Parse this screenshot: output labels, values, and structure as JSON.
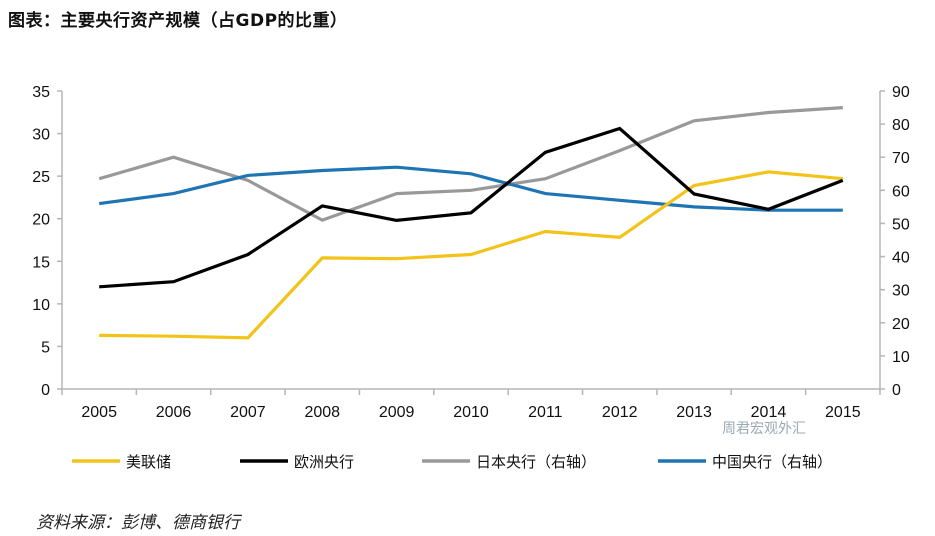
{
  "title": "图表：主要央行资产规模（占GDP的比重）",
  "source": "资料来源：彭博、德商银行",
  "watermark": "周君宏观外汇",
  "chart_data": {
    "type": "line",
    "title": "图表：主要央行资产规模（占GDP的比重）",
    "categories": [
      "2005",
      "2006",
      "2007",
      "2008",
      "2009",
      "2010",
      "2011",
      "2012",
      "2013",
      "2014",
      "2015"
    ],
    "left_axis": {
      "ylim": [
        0,
        35
      ],
      "ticks": [
        0,
        5,
        10,
        15,
        20,
        25,
        30,
        35
      ]
    },
    "right_axis": {
      "ylim": [
        0,
        90
      ],
      "ticks": [
        0,
        10,
        20,
        30,
        40,
        50,
        60,
        70,
        80,
        90
      ]
    },
    "grid": false,
    "legend_position": "bottom",
    "series": [
      {
        "name": "美联储",
        "axis": "left",
        "color": "#f2c318",
        "values": [
          6.3,
          6.2,
          6.0,
          15.4,
          15.3,
          15.8,
          18.5,
          17.8,
          23.9,
          25.5,
          24.7
        ]
      },
      {
        "name": "欧洲央行",
        "axis": "left",
        "color": "#000000",
        "values": [
          12.0,
          12.6,
          15.8,
          21.5,
          19.8,
          20.7,
          27.8,
          30.6,
          22.9,
          21.1,
          24.5
        ]
      },
      {
        "name": "日本央行（右轴）",
        "axis": "right",
        "color": "#999999",
        "values": [
          63.5,
          70.0,
          63.0,
          51.0,
          59.0,
          60.0,
          63.5,
          72.0,
          81.0,
          83.5,
          85.0
        ]
      },
      {
        "name": "中国央行（右轴）",
        "axis": "right",
        "color": "#1f75b4",
        "values": [
          56.0,
          59.0,
          64.5,
          66.0,
          67.0,
          65.0,
          59.0,
          57.0,
          55.0,
          54.0,
          54.0
        ]
      }
    ]
  }
}
